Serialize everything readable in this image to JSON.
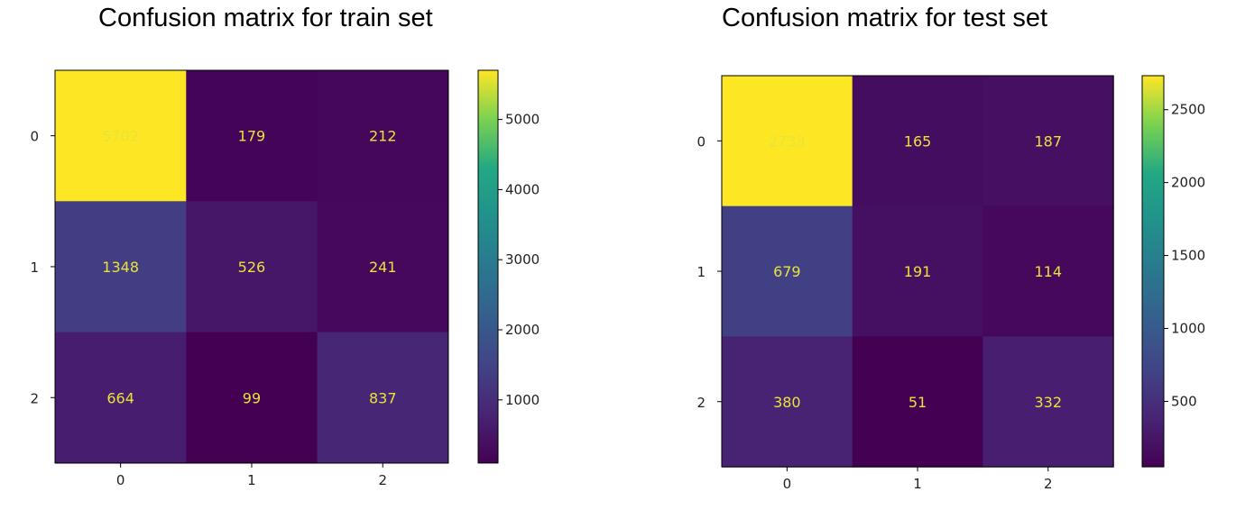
{
  "chart_data": [
    {
      "type": "heatmap",
      "title": "Confusion matrix for train set",
      "x_ticks": [
        "0",
        "1",
        "2"
      ],
      "y_ticks": [
        "0",
        "1",
        "2"
      ],
      "matrix": [
        [
          5702,
          179,
          212
        ],
        [
          1348,
          526,
          241
        ],
        [
          664,
          99,
          837
        ]
      ],
      "colorbar": {
        "min": 99,
        "max": 5702,
        "ticks": [
          1000,
          2000,
          3000,
          4000,
          5000
        ]
      },
      "colormap": "viridis"
    },
    {
      "type": "heatmap",
      "title": "Confusion matrix for test set",
      "x_ticks": [
        "0",
        "1",
        "2"
      ],
      "y_ticks": [
        "0",
        "1",
        "2"
      ],
      "matrix": [
        [
          2733,
          165,
          187
        ],
        [
          679,
          191,
          114
        ],
        [
          380,
          51,
          332
        ]
      ],
      "colorbar": {
        "min": 51,
        "max": 2733,
        "ticks": [
          500,
          1000,
          1500,
          2000,
          2500
        ]
      },
      "colormap": "viridis"
    }
  ],
  "colors": {
    "text_on_cells": "#e8e33a",
    "axis": "#000000"
  }
}
